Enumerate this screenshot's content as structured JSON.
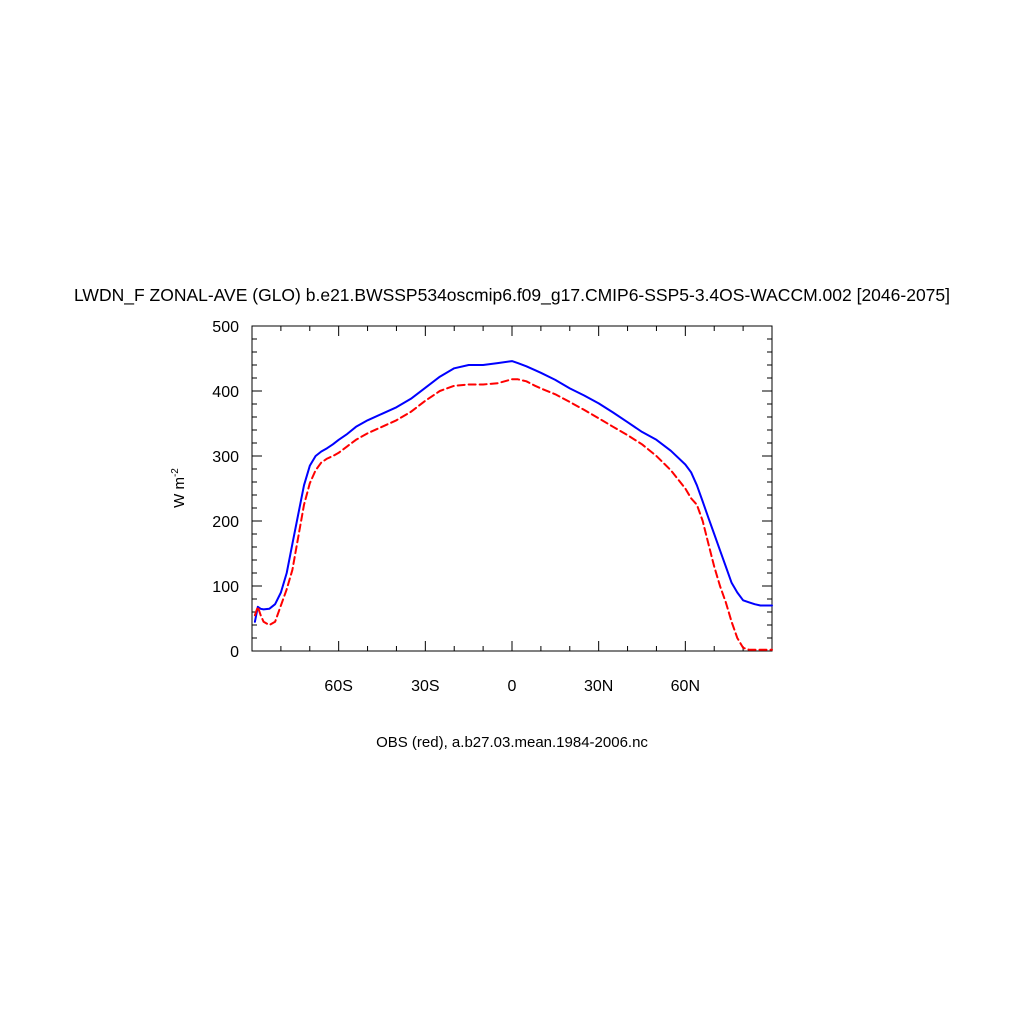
{
  "chart_data": {
    "type": "line",
    "title": "LWDN_F ZONAL-AVE (GLO) b.e21.BWSSP534oscmip6.f09_g17.CMIP6-SSP5-3.4OS-WACCM.002 [2046-2075]",
    "ylabel_main": "W m",
    "ylabel_sup": "-2",
    "xlabel": "",
    "caption": "OBS (red), a.b27.03.mean.1984-2006.nc",
    "xlim": [
      -90,
      90
    ],
    "ylim": [
      0,
      500
    ],
    "x_ticks": [
      {
        "value": -60,
        "label": "60S"
      },
      {
        "value": -30,
        "label": "30S"
      },
      {
        "value": 0,
        "label": "0"
      },
      {
        "value": 30,
        "label": "30N"
      },
      {
        "value": 60,
        "label": "60N"
      }
    ],
    "y_ticks": [
      {
        "value": 0,
        "label": "0"
      },
      {
        "value": 100,
        "label": "100"
      },
      {
        "value": 200,
        "label": "200"
      },
      {
        "value": 300,
        "label": "300"
      },
      {
        "value": 400,
        "label": "400"
      },
      {
        "value": 500,
        "label": "500"
      }
    ],
    "series": [
      {
        "color": "#0000ff",
        "dash": "solid",
        "x": [
          -89,
          -88,
          -87,
          -86,
          -84,
          -82,
          -80,
          -78,
          -76,
          -74,
          -72,
          -70,
          -68,
          -66,
          -64,
          -62,
          -60,
          -57,
          -54,
          -50,
          -45,
          -40,
          -35,
          -30,
          -25,
          -20,
          -15,
          -10,
          -5,
          0,
          2,
          5,
          8,
          10,
          15,
          20,
          25,
          30,
          35,
          40,
          45,
          50,
          55,
          60,
          62,
          64,
          66,
          68,
          70,
          72,
          74,
          76,
          78,
          80,
          82,
          84,
          86,
          88,
          90
        ],
        "y": [
          45,
          68,
          65,
          64,
          65,
          72,
          90,
          120,
          165,
          210,
          255,
          285,
          300,
          307,
          312,
          318,
          325,
          334,
          345,
          355,
          365,
          375,
          388,
          405,
          422,
          435,
          440,
          440,
          443,
          446,
          443,
          438,
          432,
          428,
          417,
          404,
          393,
          381,
          367,
          352,
          337,
          325,
          308,
          287,
          275,
          255,
          230,
          205,
          180,
          155,
          130,
          105,
          90,
          78,
          75,
          72,
          70,
          70,
          70
        ]
      },
      {
        "color": "#ff0000",
        "dash": "dashed",
        "x": [
          -89,
          -88,
          -87,
          -86,
          -84,
          -82,
          -80,
          -78,
          -76,
          -74,
          -72,
          -70,
          -68,
          -66,
          -64,
          -62,
          -60,
          -57,
          -54,
          -50,
          -45,
          -40,
          -35,
          -30,
          -25,
          -20,
          -15,
          -10,
          -5,
          0,
          2,
          5,
          8,
          10,
          15,
          20,
          25,
          30,
          35,
          40,
          45,
          50,
          55,
          60,
          62,
          64,
          66,
          68,
          70,
          72,
          74,
          76,
          78,
          80,
          82,
          84,
          86,
          88,
          90
        ],
        "y": [
          55,
          68,
          55,
          45,
          40,
          45,
          70,
          95,
          125,
          175,
          225,
          258,
          278,
          290,
          296,
          300,
          305,
          315,
          325,
          335,
          345,
          355,
          368,
          385,
          400,
          408,
          410,
          410,
          412,
          418,
          418,
          415,
          408,
          404,
          395,
          383,
          371,
          358,
          345,
          332,
          318,
          300,
          278,
          250,
          235,
          225,
          200,
          165,
          130,
          100,
          75,
          45,
          20,
          5,
          2,
          2,
          2,
          2,
          2
        ]
      }
    ]
  }
}
